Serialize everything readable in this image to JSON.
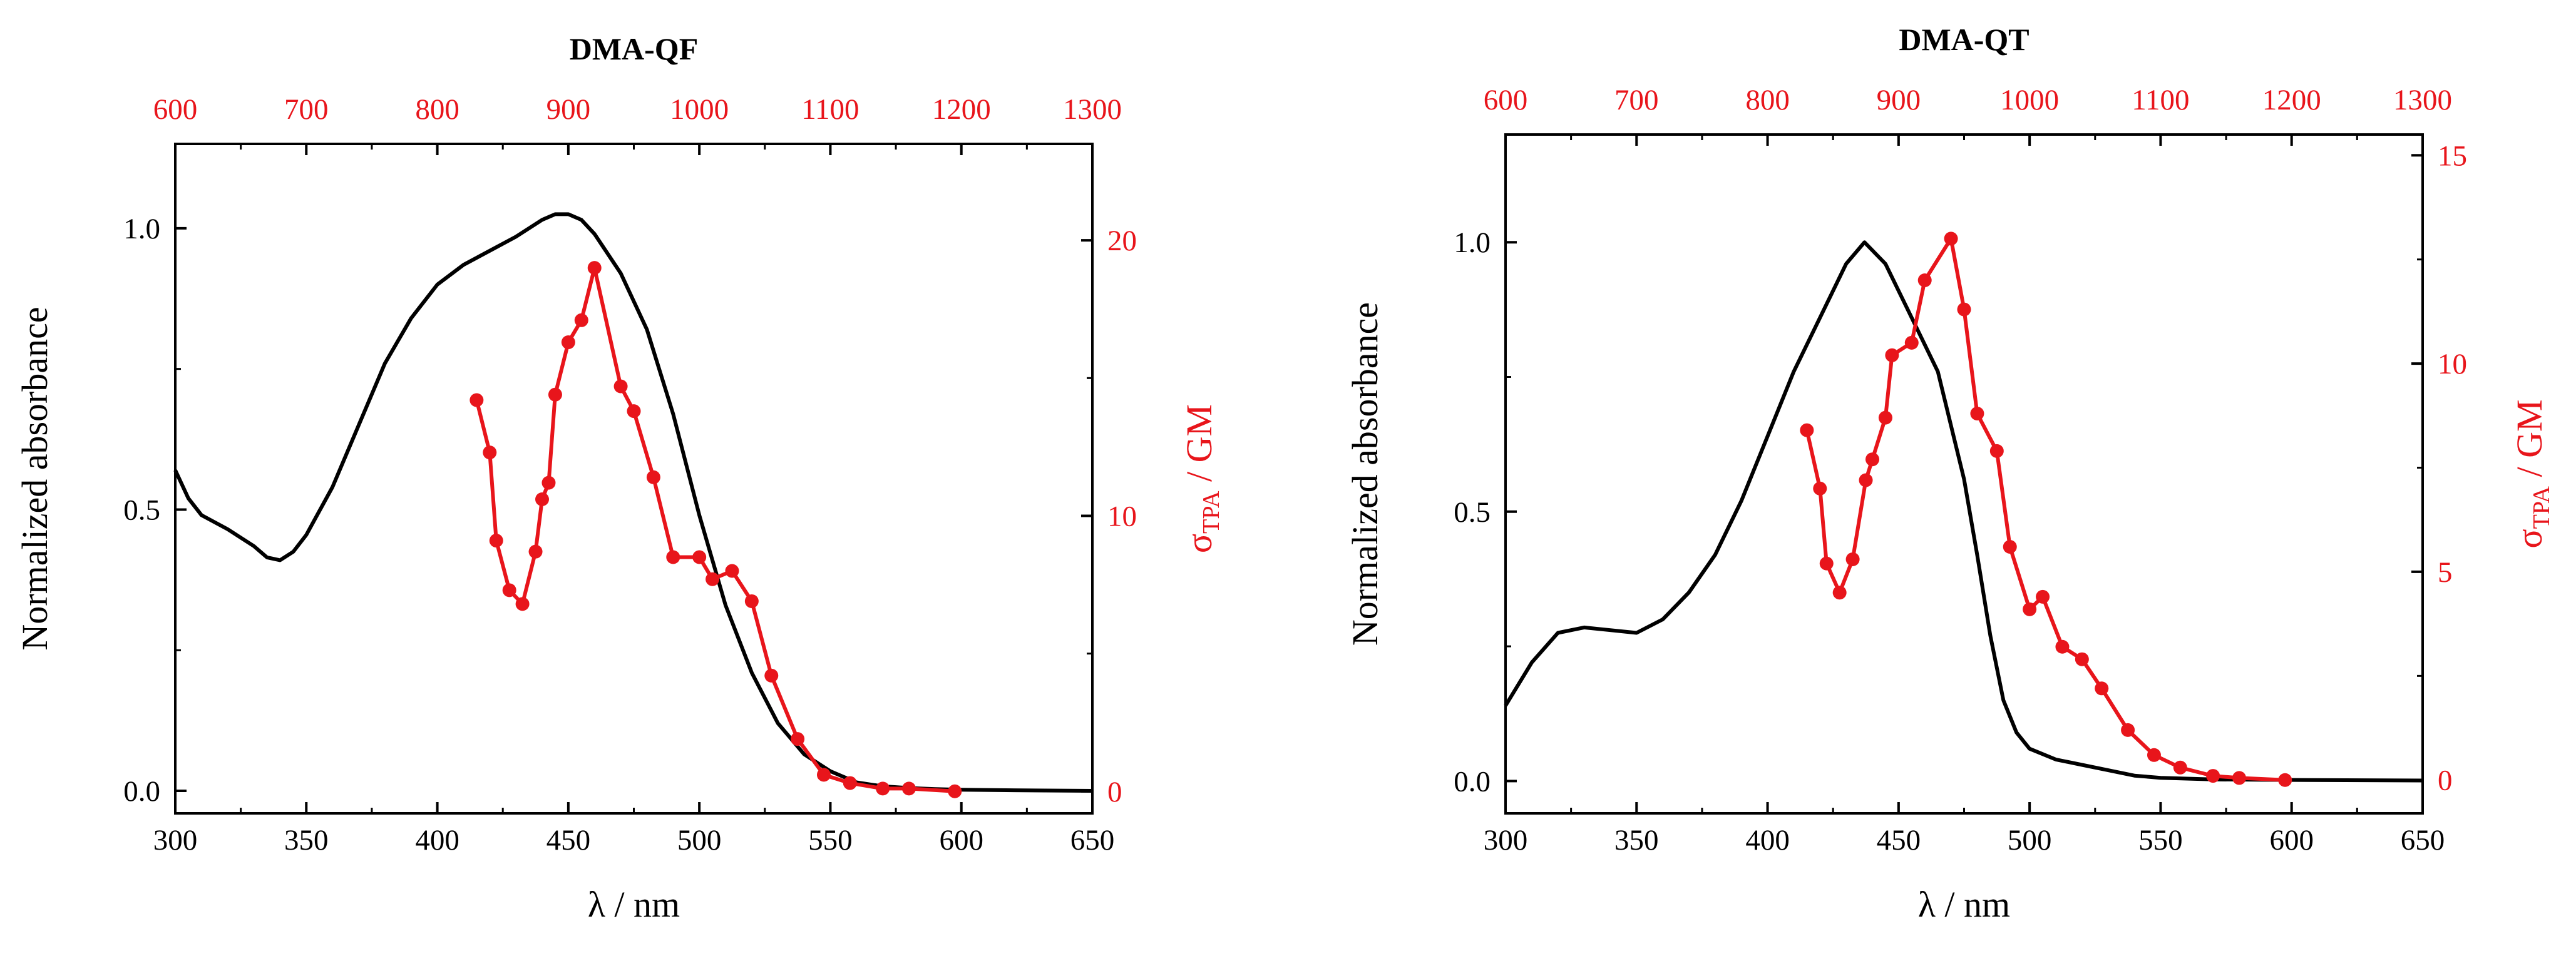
{
  "colors": {
    "absorbance": "#000000",
    "tpa": "#e8151b"
  },
  "chart_data": [
    {
      "type": "line",
      "title": "DMA-QF",
      "xlabel": "λ / nm",
      "ylabel": "Normalized absorbance",
      "y2label_main": "σ",
      "y2label_sub": "TPA",
      "y2label_unit": " / GM",
      "xlim": [
        300,
        650
      ],
      "ylim": [
        -0.04,
        1.15
      ],
      "x2lim": [
        600,
        1300
      ],
      "y2lim": [
        -0.8,
        23.5
      ],
      "xticks": [
        "300",
        "350",
        "400",
        "450",
        "500",
        "550",
        "600",
        "650"
      ],
      "yticks": [
        "0.0",
        "0.5",
        "1.0"
      ],
      "x2ticks": [
        "600",
        "700",
        "800",
        "900",
        "1000",
        "1100",
        "1200",
        "1300"
      ],
      "y2ticks": [
        "0",
        "10",
        "20"
      ],
      "series": [
        {
          "name": "Normalized absorbance",
          "axis": "left",
          "x": [
            300,
            305,
            310,
            320,
            330,
            335,
            340,
            345,
            350,
            360,
            370,
            380,
            390,
            400,
            410,
            420,
            430,
            440,
            445,
            450,
            455,
            460,
            470,
            480,
            490,
            500,
            510,
            520,
            530,
            540,
            550,
            560,
            570,
            580,
            590,
            600,
            620,
            650
          ],
          "y": [
            0.57,
            0.52,
            0.49,
            0.465,
            0.435,
            0.415,
            0.41,
            0.425,
            0.455,
            0.54,
            0.65,
            0.76,
            0.84,
            0.9,
            0.935,
            0.96,
            0.985,
            1.015,
            1.025,
            1.025,
            1.015,
            0.99,
            0.92,
            0.82,
            0.67,
            0.49,
            0.33,
            0.21,
            0.12,
            0.065,
            0.035,
            0.015,
            0.008,
            0.005,
            0.003,
            0.002,
            0.001,
            0.0
          ]
        },
        {
          "name": "σTPA",
          "axis": "right",
          "x2": [
            830,
            840,
            845,
            855,
            865,
            875,
            880,
            885,
            890,
            900,
            910,
            920,
            940,
            950,
            965,
            980,
            1000,
            1010,
            1025,
            1040,
            1055,
            1075,
            1095,
            1115,
            1140,
            1160,
            1195
          ],
          "y2": [
            14.2,
            12.3,
            9.1,
            7.3,
            6.8,
            8.7,
            10.6,
            11.2,
            14.4,
            16.3,
            17.1,
            19.0,
            14.7,
            13.8,
            11.4,
            8.5,
            8.5,
            7.7,
            8.0,
            6.9,
            4.2,
            1.9,
            0.6,
            0.3,
            0.1,
            0.1,
            0.0
          ]
        }
      ]
    },
    {
      "type": "line",
      "title": "DMA-QT",
      "xlabel": "λ / nm",
      "ylabel": "Normalized absorbance",
      "y2label_main": "σ",
      "y2label_sub": "TPA",
      "y2label_unit": " / GM",
      "xlim": [
        300,
        650
      ],
      "ylim": [
        -0.06,
        1.2
      ],
      "x2lim": [
        600,
        1300
      ],
      "y2lim": [
        -0.8,
        15.5
      ],
      "xticks": [
        "300",
        "350",
        "400",
        "450",
        "500",
        "550",
        "600",
        "650"
      ],
      "yticks": [
        "0.0",
        "0.5",
        "1.0"
      ],
      "x2ticks": [
        "600",
        "700",
        "800",
        "900",
        "1000",
        "1100",
        "1200",
        "1300"
      ],
      "y2ticks": [
        "0",
        "5",
        "10",
        "15"
      ],
      "series": [
        {
          "name": "Normalized absorbance",
          "axis": "left",
          "x": [
            300,
            310,
            320,
            330,
            340,
            350,
            360,
            370,
            380,
            390,
            400,
            410,
            420,
            430,
            437,
            445,
            455,
            465,
            475,
            480,
            485,
            490,
            495,
            500,
            510,
            520,
            530,
            540,
            550,
            570,
            600,
            650
          ],
          "y": [
            0.14,
            0.22,
            0.275,
            0.285,
            0.28,
            0.275,
            0.3,
            0.35,
            0.42,
            0.52,
            0.64,
            0.76,
            0.86,
            0.96,
            1.0,
            0.96,
            0.86,
            0.76,
            0.56,
            0.42,
            0.27,
            0.15,
            0.09,
            0.06,
            0.04,
            0.03,
            0.02,
            0.01,
            0.006,
            0.003,
            0.002,
            0.001
          ]
        },
        {
          "name": "σTPA",
          "axis": "right",
          "x2": [
            830,
            840,
            845,
            855,
            865,
            875,
            880,
            890,
            895,
            910,
            920,
            940,
            950,
            960,
            975,
            985,
            1000,
            1010,
            1025,
            1040,
            1055,
            1075,
            1095,
            1115,
            1140,
            1160,
            1195
          ],
          "y2": [
            8.4,
            7.0,
            5.2,
            4.5,
            5.3,
            7.2,
            7.7,
            8.7,
            10.2,
            10.5,
            12.0,
            13.0,
            11.3,
            8.8,
            7.9,
            5.6,
            4.1,
            4.4,
            3.2,
            2.9,
            2.2,
            1.2,
            0.6,
            0.3,
            0.1,
            0.05,
            0.0
          ]
        }
      ]
    }
  ]
}
